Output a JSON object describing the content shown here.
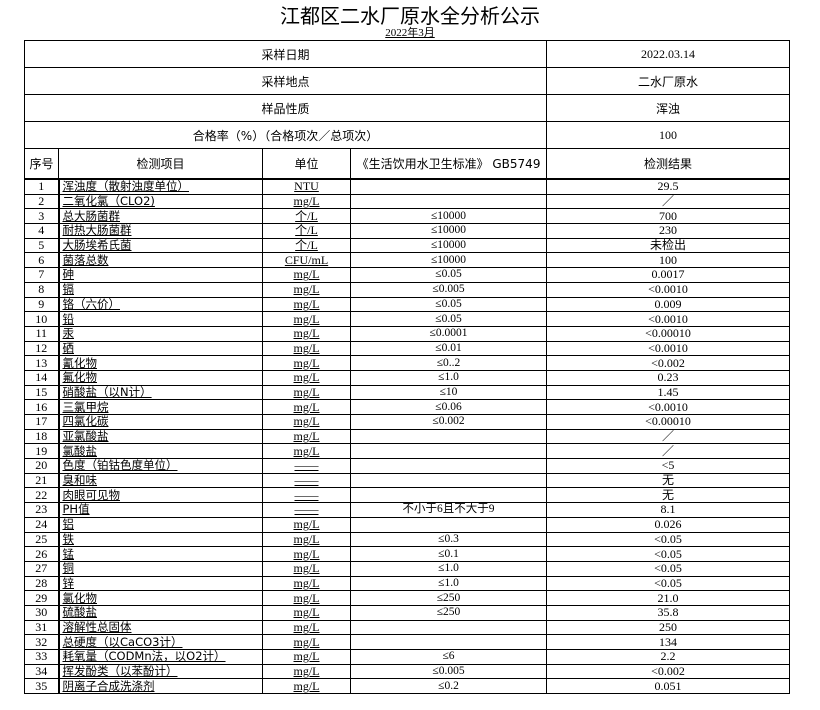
{
  "title": "江都区二水厂原水全分析公示",
  "subtitle": "2022年3月",
  "info": [
    {
      "label": "采样日期",
      "value": "2022.03.14"
    },
    {
      "label": "采样地点",
      "value": "二水厂原水"
    },
    {
      "label": "样品性质",
      "value": "浑浊"
    },
    {
      "label": "合格率（%）（合格项次／总项次）",
      "value": "100"
    }
  ],
  "headers": {
    "no": "序号",
    "item": "检测项目",
    "unit": "单位",
    "standard": "《生活饮用水卫生标准》 GB5749",
    "result": "检测结果"
  },
  "rows": [
    [
      "1",
      "浑浊度（散射浊度单位）",
      "NTU",
      "",
      "29.5"
    ],
    [
      "2",
      "二氧化氯（CLO2)",
      "mg/L",
      "",
      "／"
    ],
    [
      "3",
      "总大肠菌群",
      "个/L",
      "≤10000",
      "700"
    ],
    [
      "4",
      "耐热大肠菌群",
      "个/L",
      "≤10000",
      "230"
    ],
    [
      "5",
      "大肠埃希氏菌",
      "个/L",
      "≤10000",
      "未检出"
    ],
    [
      "6",
      "菌落总数",
      "CFU/mL",
      "≤10000",
      "100"
    ],
    [
      "7",
      "砷",
      "mg/L",
      "≤0.05",
      "0.0017"
    ],
    [
      "8",
      "镉",
      "mg/L",
      "≤0.005",
      "<0.0010"
    ],
    [
      "9",
      "铬（六价）",
      "mg/L",
      "≤0.05",
      "0.009"
    ],
    [
      "10",
      "铅",
      "mg/L",
      "≤0.05",
      "<0.0010"
    ],
    [
      "11",
      "汞",
      "mg/L",
      "≤0.0001",
      "<0.00010"
    ],
    [
      "12",
      "硒",
      "mg/L",
      "≤0.01",
      "<0.0010"
    ],
    [
      "13",
      "氰化物",
      "mg/L",
      "≤0..2",
      "<0.002"
    ],
    [
      "14",
      "氟化物",
      "mg/L",
      "≤1.0",
      "0.23"
    ],
    [
      "15",
      "硝酸盐（以N计）",
      "mg/L",
      "≤10",
      "1.45"
    ],
    [
      "16",
      "三氯甲烷",
      "mg/L",
      "≤0.06",
      "<0.0010"
    ],
    [
      "17",
      "四氯化碳",
      "mg/L",
      "≤0.002",
      "<0.00010"
    ],
    [
      "18",
      "亚氯酸盐",
      "mg/L",
      "",
      "／"
    ],
    [
      "19",
      "氯酸盐",
      "mg/L",
      "",
      "／"
    ],
    [
      "20",
      "色度（铂钴色度单位）",
      "——",
      "",
      "<5"
    ],
    [
      "21",
      "臭和味",
      "——",
      "",
      "无"
    ],
    [
      "22",
      "肉眼可见物",
      "——",
      "",
      "无"
    ],
    [
      "23",
      "PH值",
      "——",
      "不小于6且不大于9",
      "8.1"
    ],
    [
      "24",
      "铝",
      "mg/L",
      "",
      "0.026"
    ],
    [
      "25",
      "铁",
      "mg/L",
      "≤0.3",
      "<0.05"
    ],
    [
      "26",
      "锰",
      "mg/L",
      "≤0.1",
      "<0.05"
    ],
    [
      "27",
      "铜",
      "mg/L",
      "≤1.0",
      "<0.05"
    ],
    [
      "28",
      "锌",
      "mg/L",
      "≤1.0",
      "<0.05"
    ],
    [
      "29",
      "氯化物",
      "mg/L",
      "≤250",
      "21.0"
    ],
    [
      "30",
      "硫酸盐",
      "mg/L",
      "≤250",
      "35.8"
    ],
    [
      "31",
      "溶解性总固体",
      "mg/L",
      "",
      "250"
    ],
    [
      "32",
      "总硬度（以CaCO3计）",
      "mg/L",
      "",
      "134"
    ],
    [
      "33",
      "耗氧量（CODMn法，以O2计）",
      "mg/L",
      "≤6",
      "2.2"
    ],
    [
      "34",
      "挥发酚类（以苯酚计）",
      "mg/L",
      "≤0.005",
      "<0.002"
    ],
    [
      "35",
      "阴离子合成洗涤剂",
      "mg/L",
      "≤0.2",
      "0.051"
    ]
  ]
}
